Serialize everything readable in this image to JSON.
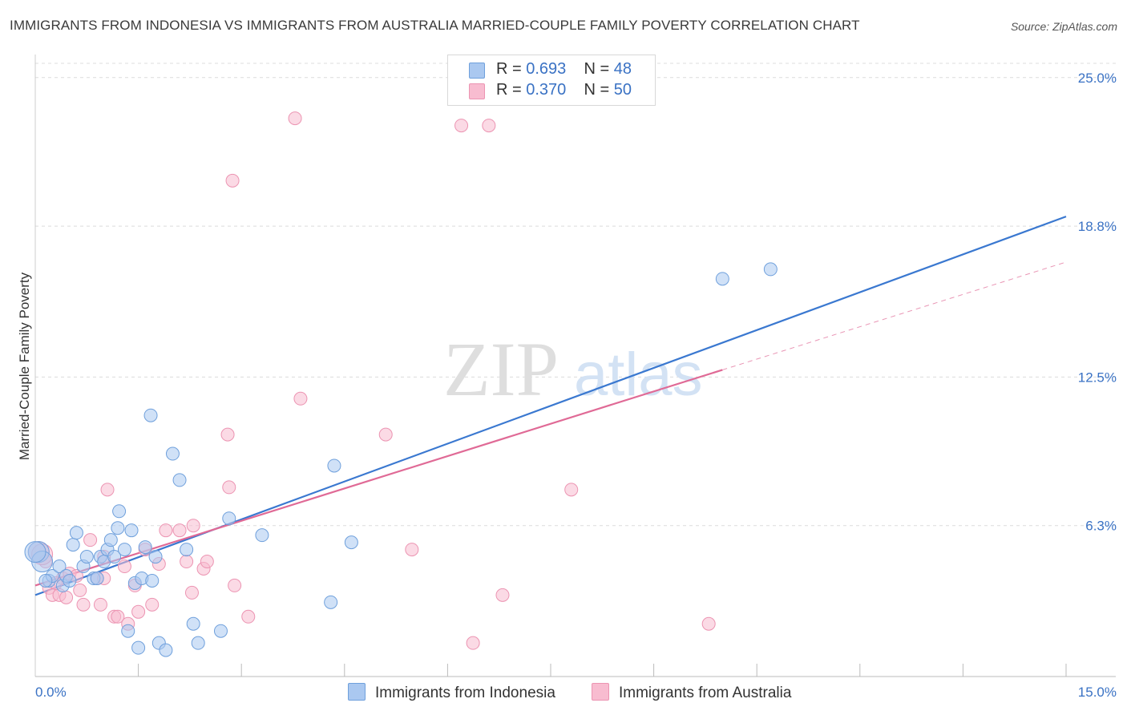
{
  "title": "IMMIGRANTS FROM INDONESIA VS IMMIGRANTS FROM AUSTRALIA MARRIED-COUPLE FAMILY POVERTY CORRELATION CHART",
  "source": "Source: ZipAtlas.com",
  "watermark": {
    "zip": "ZIP",
    "atlas": "atlas"
  },
  "legend": {
    "r_label": "R =",
    "n_label": "N =",
    "series": [
      {
        "name": "Immigrants from Indonesia",
        "r": "0.693",
        "n": "48"
      },
      {
        "name": "Immigrants from Australia",
        "r": "0.370",
        "n": "50"
      }
    ]
  },
  "colors": {
    "indonesia_fill": "#aac8f0",
    "indonesia_stroke": "#6fa0dc",
    "indonesia_line": "#3a78d0",
    "australia_fill": "#f8bcd0",
    "australia_stroke": "#ec94b2",
    "australia_line": "#e06a96",
    "tick_label": "#3a72c4",
    "grid": "#dcdcdc"
  },
  "chart_data": {
    "type": "scatter",
    "xlabel": "",
    "ylabel": "Married-Couple Family Poverty",
    "xlim": [
      0,
      15
    ],
    "ylim": [
      0,
      25
    ],
    "x_tick_labels": {
      "min": "0.0%",
      "max": "15.0%"
    },
    "y_ticks": [
      {
        "value": 6.3,
        "label": "6.3%"
      },
      {
        "value": 12.5,
        "label": "12.5%"
      },
      {
        "value": 18.8,
        "label": "18.8%"
      },
      {
        "value": 25.0,
        "label": "25.0%"
      }
    ],
    "series": [
      {
        "name": "Immigrants from Indonesia",
        "points": [
          [
            0.05,
            5.2
          ],
          [
            0.1,
            4.8
          ],
          [
            0.2,
            4.0
          ],
          [
            0.25,
            4.2
          ],
          [
            0.35,
            4.6
          ],
          [
            0.4,
            3.8
          ],
          [
            0.45,
            4.2
          ],
          [
            0.5,
            4.0
          ],
          [
            0.55,
            5.5
          ],
          [
            0.6,
            6.0
          ],
          [
            0.7,
            4.6
          ],
          [
            0.75,
            5.0
          ],
          [
            0.85,
            4.1
          ],
          [
            0.9,
            4.1
          ],
          [
            0.95,
            5.0
          ],
          [
            1.0,
            4.8
          ],
          [
            1.05,
            5.3
          ],
          [
            1.1,
            5.7
          ],
          [
            1.15,
            5.0
          ],
          [
            1.2,
            6.2
          ],
          [
            1.22,
            6.9
          ],
          [
            1.3,
            5.3
          ],
          [
            1.35,
            1.9
          ],
          [
            1.4,
            6.1
          ],
          [
            1.45,
            3.9
          ],
          [
            1.5,
            1.2
          ],
          [
            1.55,
            4.1
          ],
          [
            1.6,
            5.4
          ],
          [
            1.68,
            10.9
          ],
          [
            1.7,
            4.0
          ],
          [
            1.75,
            5.0
          ],
          [
            1.8,
            1.4
          ],
          [
            1.9,
            1.1
          ],
          [
            2.0,
            9.3
          ],
          [
            2.1,
            8.2
          ],
          [
            2.2,
            5.3
          ],
          [
            2.3,
            2.2
          ],
          [
            2.37,
            1.4
          ],
          [
            2.7,
            1.9
          ],
          [
            2.82,
            6.6
          ],
          [
            3.3,
            5.9
          ],
          [
            4.3,
            3.1
          ],
          [
            4.35,
            8.8
          ],
          [
            4.6,
            5.6
          ],
          [
            10.0,
            16.6
          ],
          [
            10.7,
            17.0
          ],
          [
            0.0,
            5.2
          ],
          [
            0.15,
            4.0
          ]
        ],
        "trend": {
          "x": [
            0,
            15
          ],
          "y": [
            3.4,
            19.2
          ]
        }
      },
      {
        "name": "Immigrants from Australia",
        "points": [
          [
            0.05,
            5.2
          ],
          [
            0.15,
            4.8
          ],
          [
            0.2,
            3.7
          ],
          [
            0.25,
            3.4
          ],
          [
            0.35,
            3.4
          ],
          [
            0.4,
            4.1
          ],
          [
            0.45,
            3.3
          ],
          [
            0.5,
            4.3
          ],
          [
            0.6,
            4.2
          ],
          [
            0.65,
            3.6
          ],
          [
            0.7,
            3.0
          ],
          [
            0.8,
            5.7
          ],
          [
            0.9,
            4.1
          ],
          [
            0.95,
            3.0
          ],
          [
            1.0,
            4.1
          ],
          [
            1.05,
            7.8
          ],
          [
            1.15,
            2.5
          ],
          [
            1.2,
            2.5
          ],
          [
            1.3,
            4.6
          ],
          [
            1.35,
            2.2
          ],
          [
            1.45,
            3.8
          ],
          [
            1.5,
            2.7
          ],
          [
            1.6,
            5.3
          ],
          [
            1.7,
            3.0
          ],
          [
            1.8,
            4.7
          ],
          [
            1.9,
            6.1
          ],
          [
            2.1,
            6.1
          ],
          [
            2.2,
            4.8
          ],
          [
            2.28,
            3.5
          ],
          [
            2.3,
            6.3
          ],
          [
            2.45,
            4.5
          ],
          [
            2.5,
            4.8
          ],
          [
            2.8,
            10.1
          ],
          [
            2.82,
            7.9
          ],
          [
            2.87,
            20.7
          ],
          [
            2.9,
            3.8
          ],
          [
            3.1,
            2.5
          ],
          [
            3.78,
            23.3
          ],
          [
            3.86,
            11.6
          ],
          [
            5.1,
            10.1
          ],
          [
            5.48,
            5.3
          ],
          [
            6.2,
            23.0
          ],
          [
            6.37,
            1.4
          ],
          [
            6.6,
            23.0
          ],
          [
            6.8,
            3.4
          ],
          [
            7.8,
            7.8
          ],
          [
            9.8,
            2.2
          ],
          [
            0.1,
            5.1
          ],
          [
            0.3,
            3.9
          ],
          [
            1.0,
            5.0
          ]
        ],
        "trend": {
          "x": [
            0,
            10
          ],
          "y": [
            3.8,
            12.8
          ]
        },
        "trend_extension": {
          "x": [
            10,
            15
          ],
          "y": [
            12.8,
            17.3
          ]
        }
      }
    ]
  }
}
